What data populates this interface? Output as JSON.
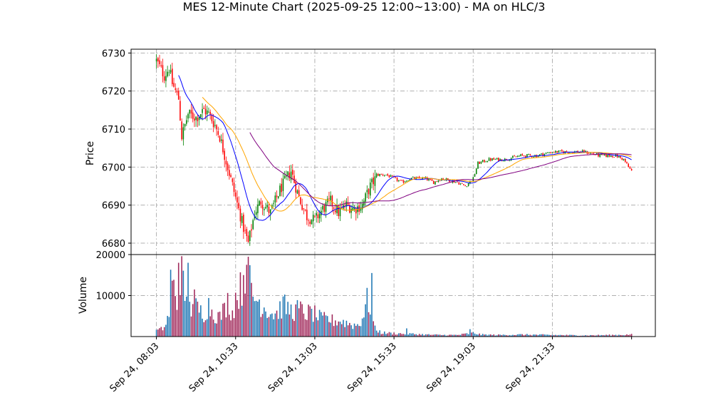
{
  "title": "MES 12-Minute Chart (2025-09-25 12:00~13:00) - MA on HLC/3",
  "chart_data": {
    "type": "candlestick",
    "price_axis": {
      "label": "Price",
      "ticks": [
        6680,
        6690,
        6700,
        6710,
        6720,
        6730
      ],
      "ylim": [
        6677,
        6731
      ]
    },
    "volume_axis": {
      "label": "Volume",
      "ticks": [
        10000,
        20000
      ],
      "ylim": [
        0,
        20000
      ]
    },
    "x_axis": {
      "tick_labels": [
        "Sep 24, 08:03",
        "Sep 24, 10:33",
        "Sep 24, 13:03",
        "Sep 24, 15:33",
        "Sep 24, 19:03",
        "Sep 24, 21:33"
      ],
      "tick_positions": [
        0,
        50,
        100,
        150,
        200,
        250
      ],
      "xlim": [
        -16,
        315
      ]
    },
    "grid": true,
    "up_color": "#008000",
    "down_color": "#ff0000",
    "volume_up_color": "#1f77b4",
    "volume_down_color": "#a0285a",
    "ma_series": [
      {
        "color": "#0000ff",
        "start": 14
      },
      {
        "color": "#ffa500",
        "start": 29
      },
      {
        "color": "#800080",
        "start": 59
      }
    ],
    "close_anchors": [
      [
        0,
        6728
      ],
      [
        5,
        6724
      ],
      [
        8,
        6726
      ],
      [
        10,
        6722
      ],
      [
        14,
        6718
      ],
      [
        16,
        6708
      ],
      [
        18,
        6711
      ],
      [
        20,
        6714
      ],
      [
        25,
        6713
      ],
      [
        30,
        6715
      ],
      [
        33,
        6714
      ],
      [
        37,
        6711
      ],
      [
        40,
        6708
      ],
      [
        45,
        6700
      ],
      [
        50,
        6692
      ],
      [
        55,
        6684
      ],
      [
        58,
        6680
      ],
      [
        62,
        6688
      ],
      [
        66,
        6691
      ],
      [
        72,
        6688
      ],
      [
        78,
        6694
      ],
      [
        85,
        6699
      ],
      [
        90,
        6692
      ],
      [
        95,
        6687
      ],
      [
        100,
        6686
      ],
      [
        105,
        6689
      ],
      [
        110,
        6691
      ],
      [
        115,
        6688
      ],
      [
        120,
        6690
      ],
      [
        125,
        6689
      ],
      [
        130,
        6690
      ],
      [
        135,
        6695
      ],
      [
        140,
        6698
      ],
      [
        145,
        6698
      ],
      [
        150,
        6697
      ],
      [
        155,
        6696
      ],
      [
        160,
        6697
      ],
      [
        170,
        6697
      ],
      [
        175,
        6696
      ],
      [
        180,
        6697
      ],
      [
        190,
        6696
      ],
      [
        195,
        6695
      ],
      [
        200,
        6697
      ],
      [
        203,
        6701
      ],
      [
        210,
        6702
      ],
      [
        220,
        6702
      ],
      [
        230,
        6703
      ],
      [
        240,
        6703
      ],
      [
        250,
        6704
      ],
      [
        260,
        6704
      ],
      [
        270,
        6704
      ],
      [
        280,
        6703
      ],
      [
        290,
        6703
      ],
      [
        295,
        6702
      ],
      [
        298,
        6700
      ],
      [
        300,
        6699
      ]
    ],
    "volume_anchors": [
      [
        0,
        1500
      ],
      [
        3,
        1800
      ],
      [
        6,
        3000
      ],
      [
        8,
        6000
      ],
      [
        9,
        14000
      ],
      [
        11,
        12000
      ],
      [
        13,
        9000
      ],
      [
        14,
        18000
      ],
      [
        16,
        17000
      ],
      [
        18,
        8000
      ],
      [
        20,
        18000
      ],
      [
        22,
        7000
      ],
      [
        24,
        9000
      ],
      [
        26,
        7000
      ],
      [
        28,
        6500
      ],
      [
        30,
        6000
      ],
      [
        33,
        8000
      ],
      [
        36,
        6000
      ],
      [
        40,
        5000
      ],
      [
        43,
        7000
      ],
      [
        45,
        9000
      ],
      [
        48,
        6000
      ],
      [
        50,
        10000
      ],
      [
        53,
        12000
      ],
      [
        55,
        14000
      ],
      [
        57,
        16000
      ],
      [
        59,
        14000
      ],
      [
        61,
        10000
      ],
      [
        64,
        9500
      ],
      [
        67,
        8000
      ],
      [
        70,
        7000
      ],
      [
        73,
        6000
      ],
      [
        76,
        6000
      ],
      [
        80,
        8000
      ],
      [
        83,
        7000
      ],
      [
        86,
        6500
      ],
      [
        90,
        7000
      ],
      [
        94,
        6000
      ],
      [
        98,
        6000
      ],
      [
        101,
        5500
      ],
      [
        104,
        4500
      ],
      [
        108,
        4500
      ],
      [
        112,
        4000
      ],
      [
        116,
        4000
      ],
      [
        120,
        3500
      ],
      [
        124,
        3000
      ],
      [
        128,
        3000
      ],
      [
        131,
        6000
      ],
      [
        133,
        9000
      ],
      [
        135,
        8000
      ],
      [
        138,
        2000
      ],
      [
        142,
        1000
      ],
      [
        150,
        800
      ],
      [
        160,
        700
      ],
      [
        170,
        500
      ],
      [
        180,
        400
      ],
      [
        190,
        400
      ],
      [
        200,
        900
      ],
      [
        205,
        500
      ],
      [
        215,
        400
      ],
      [
        230,
        500
      ],
      [
        250,
        400
      ],
      [
        270,
        300
      ],
      [
        290,
        400
      ],
      [
        300,
        500
      ]
    ],
    "volume_spikes": [
      [
        14,
        18000
      ],
      [
        20,
        18000
      ],
      [
        136,
        15500
      ],
      [
        57,
        17500
      ],
      [
        55,
        15000
      ],
      [
        198,
        1800
      ],
      [
        158,
        2000
      ]
    ]
  }
}
